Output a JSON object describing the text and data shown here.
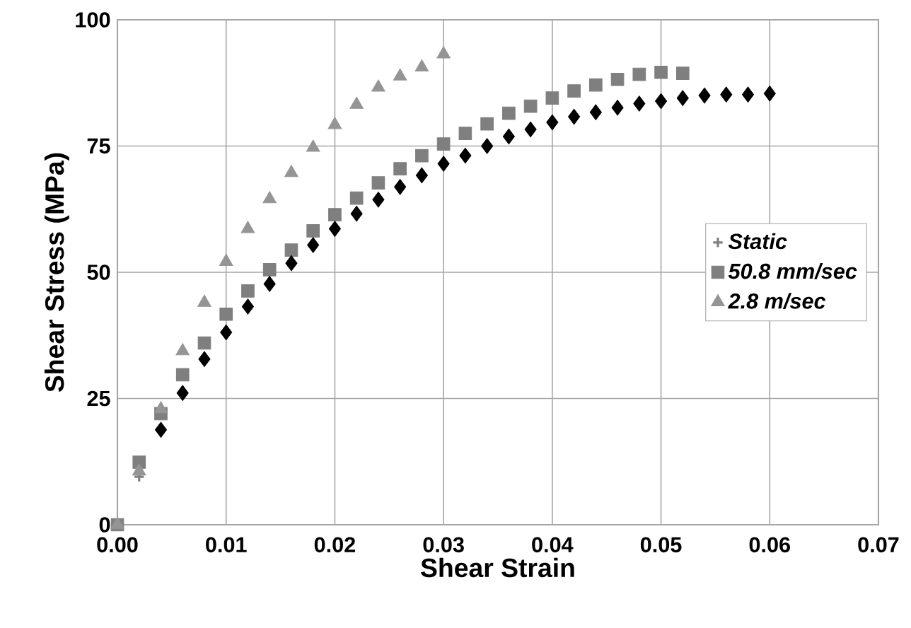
{
  "chart_data": {
    "type": "scatter",
    "xlabel": "Shear Strain",
    "ylabel": "Shear Stress (MPa)",
    "xlim": [
      0,
      0.07
    ],
    "ylim": [
      0,
      100
    ],
    "xticks": [
      {
        "value": 0,
        "label": "0.00"
      },
      {
        "value": 0.01,
        "label": "0.01"
      },
      {
        "value": 0.02,
        "label": "0.02"
      },
      {
        "value": 0.03,
        "label": "0.03"
      },
      {
        "value": 0.04,
        "label": "0.04"
      },
      {
        "value": 0.05,
        "label": "0.05"
      },
      {
        "value": 0.06,
        "label": "0.06"
      },
      {
        "value": 0.07,
        "label": "0.07"
      }
    ],
    "yticks": [
      0,
      25,
      50,
      75,
      100
    ],
    "grid": true,
    "legend": "right",
    "series": [
      {
        "name": "Static",
        "color": "#808080",
        "marker": "cross",
        "x": [
          0.002
        ],
        "values": [
          9.5
        ]
      },
      {
        "name": "50.8 mm/sec",
        "color": "#7f7f7f",
        "marker": "square",
        "x": [
          0,
          0.002,
          0.004,
          0.006,
          0.008,
          0.01,
          0.012,
          0.014,
          0.016,
          0.018,
          0.02,
          0.022,
          0.024,
          0.026,
          0.028,
          0.03,
          0.032,
          0.034,
          0.036,
          0.038,
          0.04,
          0.042,
          0.044,
          0.046,
          0.048,
          0.05,
          0.052
        ],
        "values": [
          0,
          12.4,
          22.0,
          29.7,
          36.0,
          41.7,
          46.3,
          50.5,
          54.4,
          58.2,
          61.4,
          64.7,
          67.7,
          70.5,
          73.1,
          75.4,
          77.5,
          79.4,
          81.5,
          82.9,
          84.5,
          85.9,
          87.1,
          88.2,
          89.2,
          89.6,
          89.4
        ]
      },
      {
        "name": "2.8 m/sec",
        "color": "#959595",
        "marker": "triangle",
        "x": [
          0,
          0.002,
          0.004,
          0.006,
          0.008,
          0.01,
          0.012,
          0.014,
          0.016,
          0.018,
          0.02,
          0.022,
          0.024,
          0.026,
          0.028,
          0.03
        ],
        "values": [
          0,
          10.6,
          22.9,
          34.4,
          44.0,
          52.1,
          58.6,
          64.5,
          69.7,
          74.7,
          79.2,
          83.2,
          86.6,
          88.8,
          90.6,
          93.2
        ]
      },
      {
        "color": "#000000",
        "marker": "diamond",
        "x": [
          0.004,
          0.006,
          0.008,
          0.01,
          0.012,
          0.014,
          0.016,
          0.018,
          0.02,
          0.022,
          0.024,
          0.026,
          0.028,
          0.03,
          0.032,
          0.034,
          0.036,
          0.038,
          0.04,
          0.042,
          0.044,
          0.046,
          0.048,
          0.05,
          0.052,
          0.054,
          0.056,
          0.058,
          0.06
        ],
        "values": [
          18.8,
          26.1,
          32.8,
          38.1,
          43.2,
          47.7,
          51.8,
          55.4,
          58.6,
          61.6,
          64.4,
          66.9,
          69.2,
          71.5,
          73.1,
          75.0,
          76.9,
          78.3,
          79.7,
          80.8,
          81.7,
          82.6,
          83.4,
          83.9,
          84.5,
          85.0,
          85.2,
          85.2,
          85.4
        ]
      }
    ]
  }
}
